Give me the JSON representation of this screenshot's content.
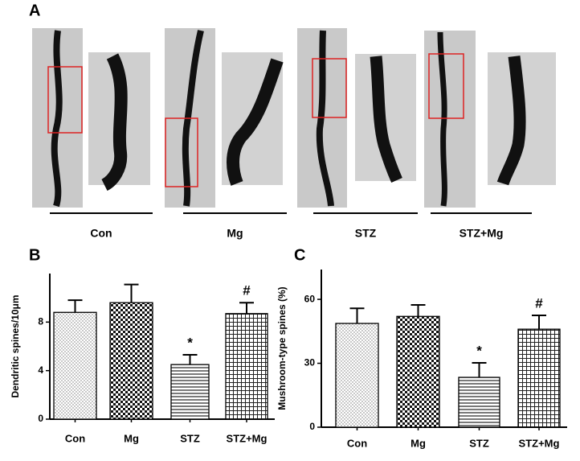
{
  "panel_a": {
    "label": "A",
    "groups": [
      "Con",
      "Mg",
      "STZ",
      "STZ+Mg"
    ]
  },
  "chart_data": [
    {
      "type": "bar",
      "panel_label": "B",
      "y_label": "Dendritic spines/10μm",
      "categories": [
        "Con",
        "Mg",
        "STZ",
        "STZ+Mg"
      ],
      "values": [
        8.8,
        9.6,
        4.5,
        8.7
      ],
      "errors": [
        1.0,
        1.5,
        0.8,
        0.9
      ],
      "patterns": [
        "dots",
        "checker",
        "hlines",
        "grid"
      ],
      "ylim": [
        0,
        12
      ],
      "yticks": [
        0,
        4,
        8
      ],
      "annotations": [
        {
          "x": "STZ",
          "text": "*"
        },
        {
          "x": "STZ+Mg",
          "text": "#"
        }
      ]
    },
    {
      "type": "bar",
      "panel_label": "C",
      "y_label": "Mushroom-type spines (%)",
      "categories": [
        "Con",
        "Mg",
        "STZ",
        "STZ+Mg"
      ],
      "values": [
        48.7,
        52,
        23.4,
        46
      ],
      "errors": [
        7.1,
        5.4,
        6.8,
        6.5
      ],
      "patterns": [
        "dots",
        "checker",
        "hlines",
        "grid"
      ],
      "ylim": [
        0,
        74
      ],
      "yticks": [
        0,
        30,
        60
      ],
      "annotations": [
        {
          "x": "STZ",
          "text": "*"
        },
        {
          "x": "STZ+Mg",
          "text": "#"
        }
      ]
    }
  ]
}
